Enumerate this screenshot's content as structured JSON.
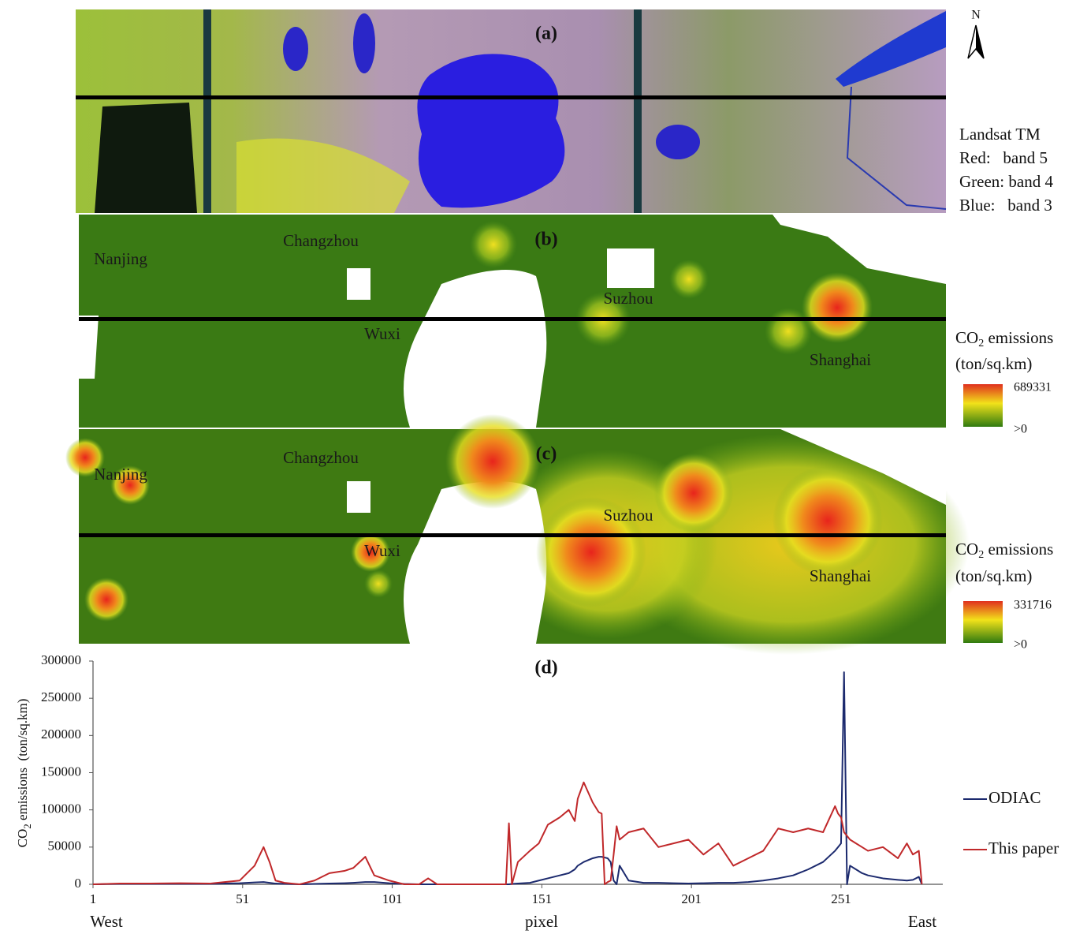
{
  "panel_a": {
    "label": "(a)",
    "north": "N",
    "legend": [
      "Landsat TM",
      "Red:   band 5",
      "Green: band 4",
      "Blue:   band 3"
    ]
  },
  "panel_b": {
    "label": "(b)",
    "cities": [
      "Nanjing",
      "Changzhou",
      "Wuxi",
      "Suzhou",
      "Shanghai"
    ],
    "legend": {
      "title": [
        "CO",
        "2",
        " emissions"
      ],
      "units": "(ton/sq.km)",
      "max": 689331,
      "min": ">0"
    }
  },
  "panel_c": {
    "label": "(c)",
    "cities": [
      "Nanjing",
      "Changzhou",
      "Wuxi",
      "Suzhou",
      "Shanghai"
    ],
    "legend": {
      "title": [
        "CO",
        "2",
        " emissions"
      ],
      "units": "(ton/sq.km)",
      "max": 331716,
      "min": ">0"
    }
  },
  "chart_data": {
    "type": "line",
    "title": "(d)",
    "xlabel": "pixel",
    "x_ends": [
      "West",
      "East"
    ],
    "ylabel": [
      "CO",
      "2",
      " emissions  (ton/sq.km)"
    ],
    "x": [
      1,
      10,
      20,
      30,
      40,
      45,
      50,
      55,
      58,
      60,
      62,
      65,
      70,
      75,
      80,
      85,
      88,
      92,
      95,
      100,
      105,
      110,
      113,
      116,
      120,
      130,
      139,
      140,
      141,
      143,
      147,
      150,
      153,
      157,
      160,
      162,
      163,
      165,
      168,
      170,
      171,
      172,
      173,
      174,
      175,
      176,
      177,
      180,
      185,
      190,
      195,
      200,
      205,
      210,
      215,
      220,
      225,
      230,
      235,
      240,
      245,
      249,
      250,
      251,
      252,
      253,
      254,
      256,
      258,
      260,
      265,
      270,
      273,
      275,
      277,
      278
    ],
    "xlim": [
      1,
      285
    ],
    "xticks": [
      1,
      51,
      101,
      151,
      201,
      251
    ],
    "ylim": [
      0,
      300000
    ],
    "yticks": [
      0,
      50000,
      100000,
      150000,
      200000,
      250000,
      300000
    ],
    "legend": "right",
    "series": [
      {
        "name": "ODIAC",
        "color": "#1c2a6e",
        "values": [
          0,
          500,
          500,
          500,
          500,
          1000,
          1500,
          2500,
          3000,
          2000,
          1000,
          500,
          0,
          500,
          1000,
          1500,
          2000,
          3000,
          3000,
          1500,
          500,
          0,
          0,
          0,
          0,
          0,
          0,
          0,
          500,
          1000,
          2000,
          5000,
          8000,
          12000,
          15000,
          20000,
          25000,
          30000,
          35000,
          37000,
          37000,
          36000,
          35000,
          30000,
          5000,
          0,
          25000,
          5000,
          2000,
          2000,
          1500,
          1000,
          1500,
          2000,
          2000,
          3000,
          5000,
          8000,
          12000,
          20000,
          30000,
          45000,
          50000,
          55000,
          285000,
          0,
          25000,
          20000,
          15000,
          12000,
          8000,
          6000,
          5000,
          6000,
          10000,
          0
        ]
      },
      {
        "name": "This paper",
        "color": "#c0282a",
        "values": [
          0,
          1000,
          1000,
          1500,
          1000,
          3000,
          5000,
          25000,
          50000,
          30000,
          5000,
          2000,
          0,
          5000,
          15000,
          18000,
          22000,
          37000,
          12000,
          5000,
          0,
          0,
          8000,
          0,
          0,
          0,
          0,
          82000,
          0,
          30000,
          45000,
          55000,
          80000,
          90000,
          100000,
          85000,
          115000,
          137000,
          110000,
          97000,
          95000,
          0,
          3000,
          5000,
          40000,
          78000,
          60000,
          70000,
          75000,
          50000,
          55000,
          60000,
          40000,
          55000,
          25000,
          35000,
          45000,
          75000,
          70000,
          75000,
          70000,
          105000,
          95000,
          90000,
          70000,
          65000,
          60000,
          55000,
          50000,
          45000,
          50000,
          35000,
          55000,
          40000,
          45000,
          0
        ]
      }
    ]
  }
}
